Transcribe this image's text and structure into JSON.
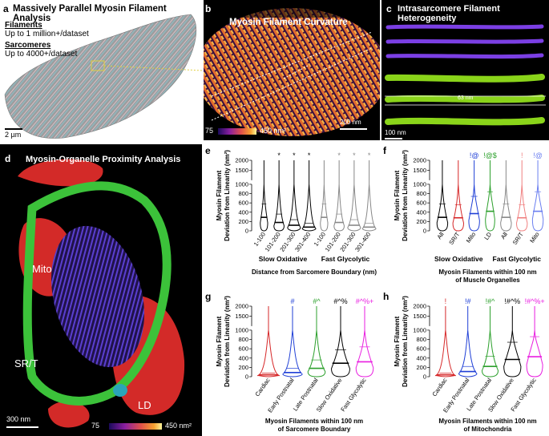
{
  "panel_a": {
    "label": "a",
    "title": "Massively Parallel Myosin Filament Analysis",
    "filaments_heading": "Filaments",
    "filaments_text": "Up to 1 million+/dataset",
    "sarcomeres_heading": "Sarcomeres",
    "sarcomeres_text": "Up to 4000+/dataset",
    "scale": "2 µm"
  },
  "panel_b": {
    "label": "b",
    "title": "Myosin Filament Curvature",
    "colorbar_min": "75",
    "colorbar_max": "450 nm²",
    "scale": "200 nm"
  },
  "panel_c": {
    "label": "c",
    "title": "Intrasarcomere Filament Heterogeneity",
    "measure": "63 nm",
    "scale": "100 nm"
  },
  "panel_d": {
    "label": "d",
    "title": "Myosin-Organelle Proximity Analysis",
    "mito": "Mito",
    "srt": "SR/T",
    "ld": "LD",
    "scale": "300 nm",
    "colorbar_min": "75",
    "colorbar_max": "450 nm²"
  },
  "colors": {
    "cardiac": "#d62728",
    "early_postnatal": "#1f3fd6",
    "late_postnatal": "#2ca02c",
    "slow_oxidative": "#000000",
    "fast_glycolytic": "#e91ee0",
    "gray": "#888888",
    "red_light": "#f08080",
    "blue_light": "#6b7ff0"
  },
  "chart_data": [
    {
      "id": "e",
      "type": "violin",
      "ylabel_lines": [
        "Myosin  Filament",
        "Deviation from  Linearity (nm²)"
      ],
      "yticks": [
        "0",
        "200",
        "400",
        "600",
        "800",
        "1000",
        "1500",
        "2000"
      ],
      "categories": [
        "1-100",
        "101-200",
        "201-300",
        "301-400",
        "1-100",
        "101-200",
        "201-300",
        "301-400"
      ],
      "colors": [
        "#000000",
        "#000000",
        "#000000",
        "#000000",
        "#888888",
        "#888888",
        "#888888",
        "#888888"
      ],
      "widths": [
        0.55,
        0.75,
        0.95,
        1.0,
        0.55,
        0.75,
        0.95,
        1.0
      ],
      "medians": [
        290,
        180,
        120,
        80,
        290,
        180,
        120,
        80
      ],
      "symbols": [
        "",
        "*",
        "*",
        "*",
        "",
        "*",
        "*",
        "*"
      ],
      "groups": [
        "Slow Oxidative",
        "Fast Glycolytic"
      ],
      "xlabel": "Distance from  Sarcomere Boundary  (nm)"
    },
    {
      "id": "f",
      "type": "violin",
      "ylabel_lines": [
        "Myosin  Filament",
        "Deviation from  Linearity (nm²)"
      ],
      "yticks": [
        "0",
        "200",
        "400",
        "600",
        "800",
        "1000",
        "1500",
        "2000"
      ],
      "categories": [
        "All",
        "SR/T",
        "Mito",
        "LD",
        "All",
        "SR/T",
        "Mito"
      ],
      "colors": [
        "#000000",
        "#d62728",
        "#1f3fd6",
        "#2ca02c",
        "#888888",
        "#f08080",
        "#6b7ff0"
      ],
      "widths": [
        0.75,
        0.75,
        0.75,
        0.65,
        0.75,
        0.75,
        0.75
      ],
      "medians": [
        290,
        280,
        370,
        420,
        290,
        280,
        420
      ],
      "symbols": [
        "",
        "",
        "!@",
        "!@$",
        "",
        "!",
        "!@"
      ],
      "groups": [
        "Slow Oxidative",
        "Fast Glycolytic"
      ],
      "xlabel_lines": [
        "Myosin Filaments within 100 nm",
        "of Muscle Organelles"
      ]
    },
    {
      "id": "g",
      "type": "violin",
      "ylabel_lines": [
        "Myosin  Filament",
        "Deviation from  Linearity (nm²)"
      ],
      "yticks": [
        "0",
        "200",
        "400",
        "600",
        "800",
        "1000",
        "1500",
        "2000"
      ],
      "categories": [
        "Cardiac",
        "Early Postnatal",
        "Late Postnatal",
        "Slow Oxidative",
        "Fast Glycolytic"
      ],
      "colors": [
        "#d62728",
        "#1f3fd6",
        "#2ca02c",
        "#000000",
        "#e91ee0"
      ],
      "widths": [
        1.0,
        0.9,
        0.8,
        0.85,
        0.8
      ],
      "medians": [
        40,
        90,
        180,
        290,
        320
      ],
      "symbols": [
        "",
        "#",
        "#^",
        "#^%",
        "#^%+"
      ],
      "xlabel_lines": [
        "Myosin Filaments within 100 nm",
        "of Sarcomere  Boundary"
      ]
    },
    {
      "id": "h",
      "type": "violin",
      "ylabel_lines": [
        "Myosin  Filament",
        "Deviation from  Linearity (nm²)"
      ],
      "yticks": [
        "0",
        "200",
        "400",
        "600",
        "800",
        "1000",
        "1500",
        "2000"
      ],
      "categories": [
        "Cardiac",
        "Early Postnatal",
        "Late Postnatal",
        "Slow Oxidative",
        "Fast Glycolytic"
      ],
      "colors": [
        "#d62728",
        "#1f3fd6",
        "#2ca02c",
        "#000000",
        "#e91ee0"
      ],
      "widths": [
        1.0,
        0.9,
        0.8,
        0.85,
        0.8
      ],
      "medians": [
        40,
        110,
        220,
        370,
        430
      ],
      "symbols": [
        "!",
        "!#",
        "!#^",
        "!#^%",
        "!#^%+"
      ],
      "xlabel_lines": [
        "Myosin Filaments within 100 nm",
        "of Mitochondria"
      ]
    }
  ]
}
